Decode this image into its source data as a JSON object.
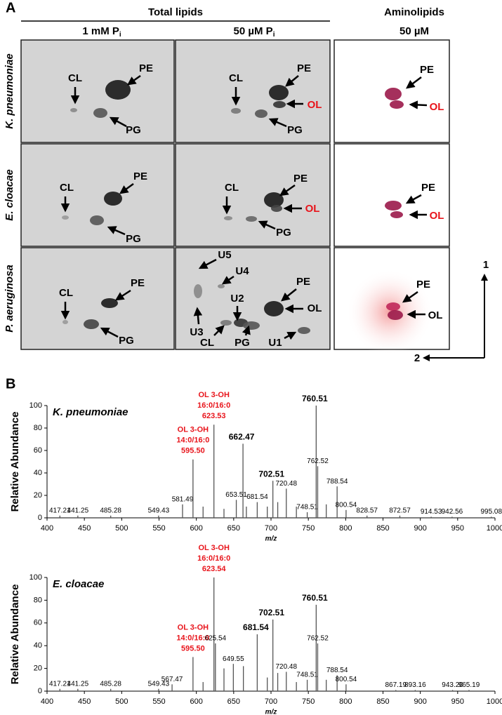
{
  "panel_a": {
    "label": "A",
    "group_title": "Total lipids",
    "col_headers": [
      {
        "text": "1 mM P",
        "sub": "i"
      },
      {
        "text": "50 µM P",
        "sub": "i"
      }
    ],
    "amino_title": "Aminolipids",
    "amino_sub": "50 µM",
    "row_labels": [
      "K. pneumoniae",
      "E. cloacae",
      "P. aeruginosa"
    ],
    "axis_labels": [
      "1",
      "2"
    ],
    "spot_labels": [
      [
        [
          "CL",
          "PE",
          "PG"
        ],
        [
          "CL",
          "PE",
          "OL",
          "PG"
        ],
        [
          "PE",
          "OL"
        ]
      ],
      [
        [
          "CL",
          "PE",
          "PG"
        ],
        [
          "CL",
          "PE",
          "OL",
          "PG"
        ],
        [
          "PE",
          "OL"
        ]
      ],
      [
        [
          "CL",
          "PE",
          "PG"
        ],
        [
          "U5",
          "U4",
          "U3",
          "U2",
          "PE",
          "OL",
          "CL",
          "PG",
          "U1"
        ],
        [
          "PE",
          "OL"
        ]
      ]
    ]
  },
  "panel_b": {
    "label": "B",
    "x_label": "m/z",
    "y_label": "Relative Abundance",
    "xlim": [
      400,
      1000
    ],
    "xticks": [
      400,
      450,
      500,
      550,
      600,
      650,
      700,
      750,
      800,
      850,
      900,
      950,
      1000
    ],
    "ylim": [
      0,
      100
    ],
    "yticks": [
      0,
      20,
      40,
      60,
      80,
      100
    ],
    "annotation_color": "#e8141b",
    "peak_color": "#555555",
    "spectra": [
      {
        "name": "K. pneumoniae",
        "peaks": [
          {
            "mz": 417.21,
            "abundance": 2,
            "label": "417.21"
          },
          {
            "mz": 441.25,
            "abundance": 2,
            "label": "441.25"
          },
          {
            "mz": 485.28,
            "abundance": 2,
            "label": "485.28"
          },
          {
            "mz": 549.43,
            "abundance": 2,
            "label": "549.43"
          },
          {
            "mz": 581.49,
            "abundance": 12,
            "label": "581.49"
          },
          {
            "mz": 595.5,
            "abundance": 52,
            "label": "595.50",
            "annotation": [
              "OL 3-OH",
              "14:0/16:0"
            ]
          },
          {
            "mz": 609,
            "abundance": 10
          },
          {
            "mz": 623.53,
            "abundance": 83,
            "label": "623.53",
            "annotation": [
              "OL 3-OH",
              "16:0/16:0"
            ]
          },
          {
            "mz": 637,
            "abundance": 8
          },
          {
            "mz": 653.51,
            "abundance": 16,
            "label": "653.51"
          },
          {
            "mz": 662.47,
            "abundance": 66,
            "label": "662.47",
            "bold": true
          },
          {
            "mz": 667,
            "abundance": 10
          },
          {
            "mz": 681.54,
            "abundance": 14,
            "label": "681.54"
          },
          {
            "mz": 695,
            "abundance": 10
          },
          {
            "mz": 702.51,
            "abundance": 33,
            "label": "702.51",
            "bold": true
          },
          {
            "mz": 709,
            "abundance": 14
          },
          {
            "mz": 720.48,
            "abundance": 26,
            "label": "720.48"
          },
          {
            "mz": 734,
            "abundance": 10
          },
          {
            "mz": 748.51,
            "abundance": 5,
            "label": "748.51"
          },
          {
            "mz": 760.51,
            "abundance": 100,
            "label": "760.51",
            "bold": true
          },
          {
            "mz": 762.52,
            "abundance": 46,
            "label": "762.52"
          },
          {
            "mz": 774,
            "abundance": 12
          },
          {
            "mz": 788.54,
            "abundance": 28,
            "label": "788.54"
          },
          {
            "mz": 800.54,
            "abundance": 7,
            "label": "800.54"
          },
          {
            "mz": 828.57,
            "abundance": 2,
            "label": "828.57"
          },
          {
            "mz": 872.57,
            "abundance": 2,
            "label": "872.57"
          },
          {
            "mz": 914.53,
            "abundance": 1,
            "label": "914.53"
          },
          {
            "mz": 942.56,
            "abundance": 1,
            "label": "942.56"
          },
          {
            "mz": 995.08,
            "abundance": 1,
            "label": "995.08"
          }
        ]
      },
      {
        "name": "E. cloacae",
        "peaks": [
          {
            "mz": 417.21,
            "abundance": 2,
            "label": "417.21"
          },
          {
            "mz": 441.25,
            "abundance": 2,
            "label": "441.25"
          },
          {
            "mz": 485.28,
            "abundance": 2,
            "label": "485.28"
          },
          {
            "mz": 549.43,
            "abundance": 2,
            "label": "549.43"
          },
          {
            "mz": 567.47,
            "abundance": 6,
            "label": "567.47"
          },
          {
            "mz": 595.5,
            "abundance": 30,
            "label": "595.50",
            "annotation": [
              "OL 3-OH",
              "14:0/16:0"
            ]
          },
          {
            "mz": 609,
            "abundance": 8
          },
          {
            "mz": 623.54,
            "abundance": 100,
            "label": "623.54",
            "annotation": [
              "OL 3-OH",
              "16:0/16:0"
            ]
          },
          {
            "mz": 625.54,
            "abundance": 42,
            "label": "625.54"
          },
          {
            "mz": 637,
            "abundance": 20
          },
          {
            "mz": 649.55,
            "abundance": 24,
            "label": "649.55"
          },
          {
            "mz": 663,
            "abundance": 22
          },
          {
            "mz": 681.54,
            "abundance": 50,
            "label": "681.54",
            "bold": true
          },
          {
            "mz": 695,
            "abundance": 12
          },
          {
            "mz": 702.51,
            "abundance": 63,
            "label": "702.51",
            "bold": true
          },
          {
            "mz": 709,
            "abundance": 16
          },
          {
            "mz": 720.48,
            "abundance": 17,
            "label": "720.48"
          },
          {
            "mz": 734,
            "abundance": 8
          },
          {
            "mz": 748.51,
            "abundance": 10,
            "label": "748.51"
          },
          {
            "mz": 760.51,
            "abundance": 76,
            "label": "760.51",
            "bold": true
          },
          {
            "mz": 762.52,
            "abundance": 42,
            "label": "762.52"
          },
          {
            "mz": 774,
            "abundance": 10
          },
          {
            "mz": 788.54,
            "abundance": 14,
            "label": "788.54"
          },
          {
            "mz": 800.54,
            "abundance": 6,
            "label": "800.54"
          },
          {
            "mz": 867.19,
            "abundance": 1,
            "label": "867.19"
          },
          {
            "mz": 893.16,
            "abundance": 1,
            "label": "893.16"
          },
          {
            "mz": 943.2,
            "abundance": 1,
            "label": "943.20"
          },
          {
            "mz": 965.19,
            "abundance": 1,
            "label": "965.19"
          }
        ]
      }
    ]
  }
}
